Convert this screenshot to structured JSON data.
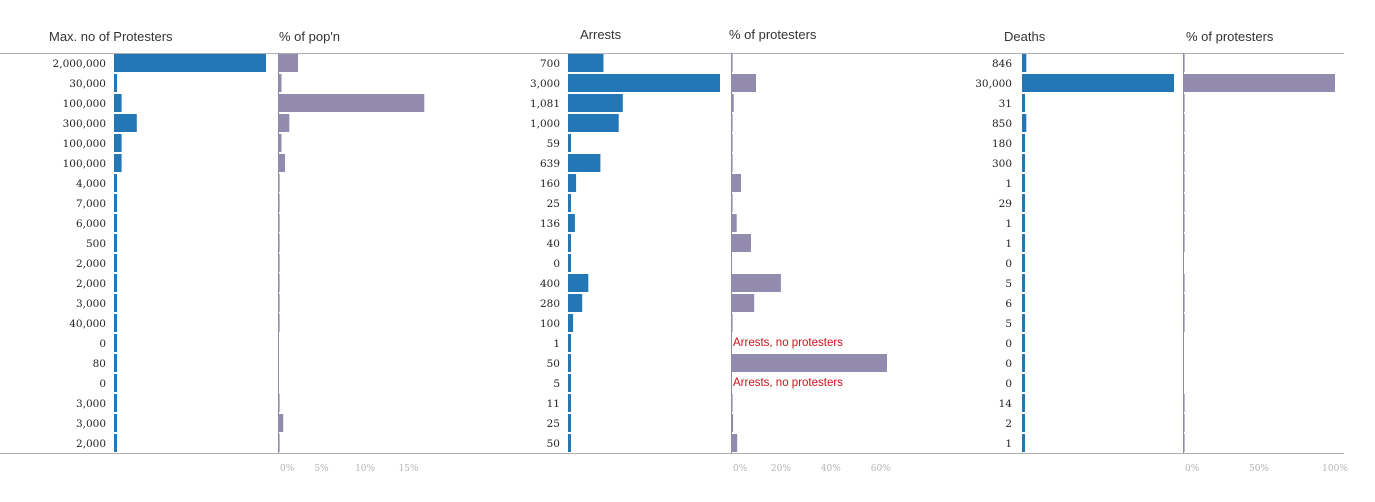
{
  "colors": {
    "count_bar": "#2277b4",
    "pct_bar": "#928bad",
    "axis_line": "#8a8aa0",
    "rule": "#b0b0b0",
    "note": "#d0101a",
    "tick_label": "#b4b4b4"
  },
  "chart_data": {
    "type": "bar",
    "orientation": "horizontal",
    "row_count": 20,
    "panels": [
      {
        "id": "protesters",
        "header": "Max. no of Protesters",
        "kind": "count",
        "xlim": [
          0,
          2000000
        ],
        "labels": [
          "2,000,000",
          "30,000",
          "100,000",
          "300,000",
          "100,000",
          "100,000",
          "4,000",
          "7,000",
          "6,000",
          "500",
          "2,000",
          "2,000",
          "3,000",
          "40,000",
          "0",
          "80",
          "0",
          "3,000",
          "3,000",
          "2,000"
        ],
        "values": [
          2000000,
          30000,
          100000,
          300000,
          100000,
          100000,
          4000,
          7000,
          6000,
          500,
          2000,
          2000,
          3000,
          40000,
          0,
          80,
          0,
          3000,
          3000,
          2000
        ]
      },
      {
        "id": "pct_population",
        "header": "% of pop'n",
        "kind": "percent",
        "xlim": [
          0,
          17
        ],
        "ticks": [
          0,
          5,
          10,
          15
        ],
        "tick_labels": [
          "0%",
          "5%",
          "10%",
          "15%"
        ],
        "values": [
          2.3,
          0.4,
          16.8,
          1.3,
          0.4,
          0.8,
          0.05,
          0.05,
          0.05,
          0.02,
          0.05,
          0.05,
          0.05,
          0.1,
          0,
          0,
          0,
          0.1,
          0.6,
          0.05
        ]
      },
      {
        "id": "arrests",
        "header": "Arrests",
        "kind": "count",
        "xlim": [
          0,
          3000
        ],
        "labels": [
          "700",
          "3,000",
          "1,081",
          "1,000",
          "59",
          "639",
          "160",
          "25",
          "136",
          "40",
          "0",
          "400",
          "280",
          "100",
          "1",
          "50",
          "5",
          "11",
          "25",
          "50"
        ],
        "values": [
          700,
          3000,
          1081,
          1000,
          59,
          639,
          160,
          25,
          136,
          40,
          0,
          400,
          280,
          100,
          1,
          50,
          5,
          11,
          25,
          50
        ]
      },
      {
        "id": "arrests_pct_protesters",
        "header": "% of protesters",
        "kind": "percent",
        "xlim": [
          0,
          62.5
        ],
        "ticks": [
          0,
          20,
          40,
          60
        ],
        "tick_labels": [
          "0%",
          "20%",
          "40%",
          "60%"
        ],
        "values": [
          0.04,
          10,
          1.1,
          0.33,
          0.06,
          0.64,
          4,
          0.36,
          2.3,
          8,
          0,
          20,
          9.3,
          0.25,
          null,
          62.5,
          null,
          0.37,
          0.83,
          2.5
        ],
        "notes": [
          null,
          null,
          null,
          null,
          null,
          null,
          null,
          null,
          null,
          null,
          null,
          null,
          null,
          null,
          "Arrests, no protesters",
          null,
          "Arrests, no protesters",
          null,
          null,
          null
        ]
      },
      {
        "id": "deaths",
        "header": "Deaths",
        "kind": "count",
        "xlim": [
          0,
          30000
        ],
        "labels": [
          "846",
          "30,000",
          "31",
          "850",
          "180",
          "300",
          "1",
          "29",
          "1",
          "1",
          "0",
          "5",
          "6",
          "5",
          "0",
          "0",
          "0",
          "14",
          "2",
          "1"
        ],
        "values": [
          846,
          30000,
          31,
          850,
          180,
          300,
          1,
          29,
          1,
          1,
          0,
          5,
          6,
          5,
          0,
          0,
          0,
          14,
          2,
          1
        ]
      },
      {
        "id": "deaths_pct_protesters",
        "header": "% of protesters",
        "kind": "percent",
        "xlim": [
          0,
          100
        ],
        "ticks": [
          0,
          50,
          100
        ],
        "tick_labels": [
          "0%",
          "50%",
          "100%"
        ],
        "values": [
          0.04,
          100,
          0.03,
          0.28,
          0.18,
          0.3,
          0.03,
          0.41,
          0.02,
          0.2,
          0,
          0.25,
          0.2,
          0.01,
          0,
          0,
          0,
          0.47,
          0.07,
          0.05
        ]
      }
    ]
  }
}
